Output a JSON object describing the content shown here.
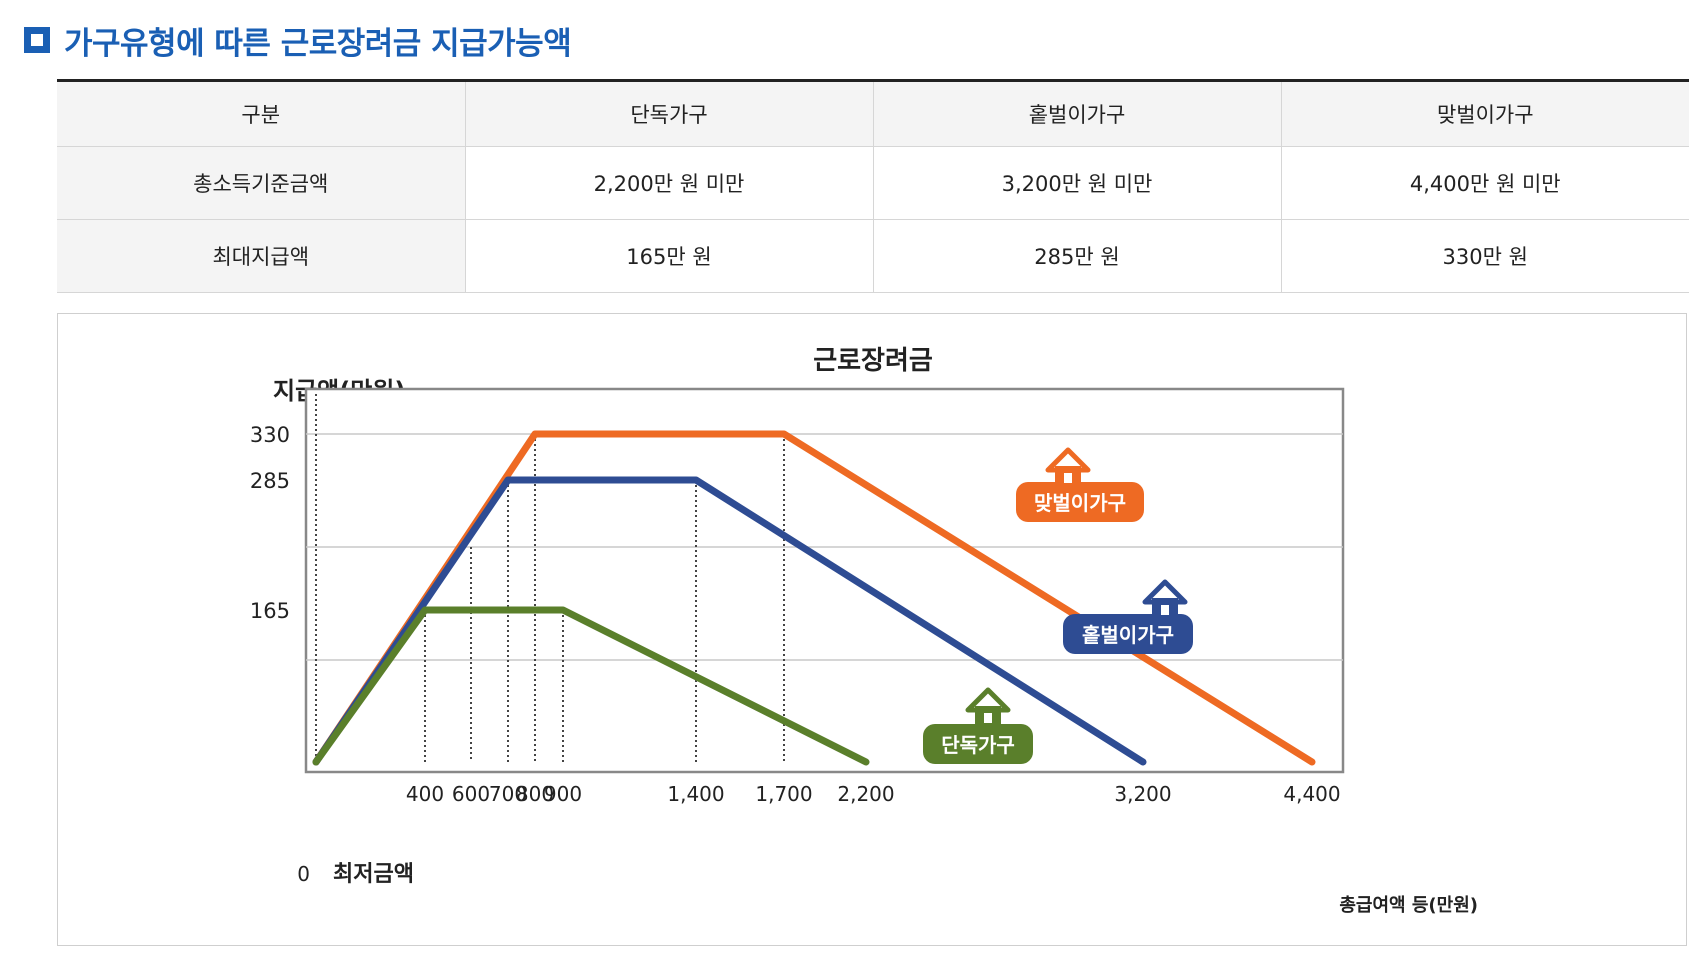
{
  "heading": {
    "title": "가구유형에 따른 근로장려금 지급가능액"
  },
  "table": {
    "headers": [
      "구분",
      "단독가구",
      "홑벌이가구",
      "맞벌이가구"
    ],
    "rows": [
      [
        "총소득기준금액",
        "2,200만 원 미만",
        "3,200만 원 미만",
        "4,400만 원 미만"
      ],
      [
        "최대지급액",
        "165만 원",
        "285만 원",
        "330만 원"
      ]
    ]
  },
  "chart_data": {
    "type": "line",
    "title": "근로장려금",
    "ylabel": "지급액(만원)",
    "xlabel": "총급여액 등(만원)",
    "origin_label": "0",
    "x_start_label": "최저금액",
    "x_ticks": [
      400,
      600,
      700,
      800,
      900,
      1400,
      1700,
      2200,
      3200,
      4400
    ],
    "x_tick_labels": [
      "400",
      "600",
      "700",
      "800",
      "900",
      "1,400",
      "1,700",
      "2,200",
      "3,200",
      "4,400"
    ],
    "y_ticks": [
      330,
      285,
      165
    ],
    "y_tick_labels": [
      "330",
      "285",
      "165"
    ],
    "xlim": [
      0,
      4400
    ],
    "ylim": [
      0,
      330
    ],
    "grid": true,
    "series": [
      {
        "name": "맞벌이가구",
        "color": "#ee6a23",
        "icon": "house-icon",
        "x": [
          0,
          800,
          1700,
          4400
        ],
        "y": [
          0,
          330,
          330,
          0
        ]
      },
      {
        "name": "홑벌이가구",
        "color": "#2e4c93",
        "icon": "house-icon",
        "x": [
          0,
          700,
          1400,
          3200
        ],
        "y": [
          0,
          285,
          285,
          0
        ]
      },
      {
        "name": "단독가구",
        "color": "#5a7f2b",
        "icon": "house-icon",
        "x": [
          0,
          400,
          900,
          2200
        ],
        "y": [
          0,
          165,
          165,
          0
        ]
      }
    ]
  }
}
